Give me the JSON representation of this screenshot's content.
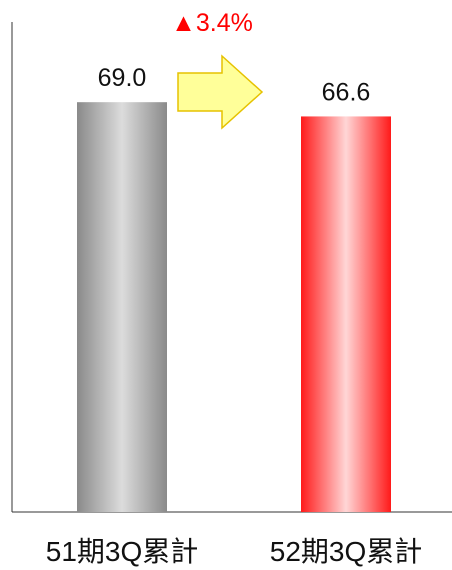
{
  "chart_data": {
    "type": "bar",
    "categories": [
      "51期3Q累計",
      "52期3Q累計"
    ],
    "values": [
      69.0,
      66.6
    ],
    "data_labels": [
      "69.0",
      "66.6"
    ],
    "ylim": [
      0,
      82.5
    ],
    "grid": false,
    "title": "",
    "xlabel": "",
    "ylabel": "",
    "bar_styles": [
      "gray-gradient",
      "red-gradient"
    ],
    "annotation": {
      "text": "▲3.4%",
      "color": "#ff0000",
      "arrow": "right",
      "arrow_fill": "#ffff99",
      "arrow_stroke": "#e6c200"
    }
  }
}
